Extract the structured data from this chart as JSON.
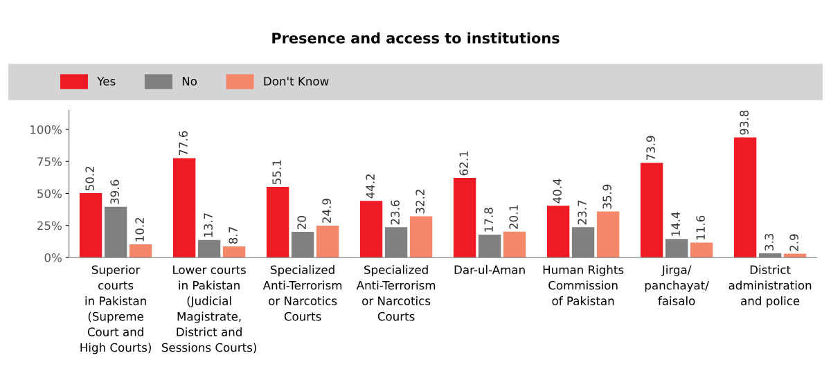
{
  "chart_data": {
    "type": "bar",
    "title": "Presence and access to institutions",
    "categories": [
      "Superior\ncourts\nin Pakistan\n(Supreme\nCourt and\nHigh Courts)",
      "Lower courts\nin Pakistan\n(Judicial\nMagistrate,\nDistrict and\nSessions Courts)",
      "Specialized\nAnti-Terrorism\nor Narcotics\nCourts",
      "Specialized\nAnti-Terrorism\nor Narcotics\nCourts",
      "Dar-ul-Aman",
      "Human Rights\nCommission\nof Pakistan",
      "Jirga/\npanchayat/\nfaisalo",
      "District\nadministration\nand police"
    ],
    "series": [
      {
        "name": "Yes",
        "color": "#ed1c24",
        "values": [
          50.2,
          77.6,
          55.1,
          44.2,
          62.1,
          40.4,
          73.9,
          93.8
        ]
      },
      {
        "name": "No",
        "color": "#808083",
        "values": [
          39.6,
          13.7,
          20,
          23.6,
          17.8,
          23.7,
          14.4,
          3.3
        ]
      },
      {
        "name": "Don't Know",
        "color": "#f4876a",
        "values": [
          10.2,
          8.7,
          24.9,
          32.2,
          20.1,
          35.9,
          11.6,
          2.9
        ]
      }
    ],
    "ylim": [
      0,
      115
    ],
    "yticks": [
      {
        "value": 0,
        "label": "0%"
      },
      {
        "value": 25,
        "label": "25%"
      },
      {
        "value": 50,
        "label": "50%"
      },
      {
        "value": 75,
        "label": "75%"
      },
      {
        "value": 100,
        "label": "100%"
      }
    ],
    "data_labels": true,
    "grid": false,
    "legend": "top left"
  }
}
